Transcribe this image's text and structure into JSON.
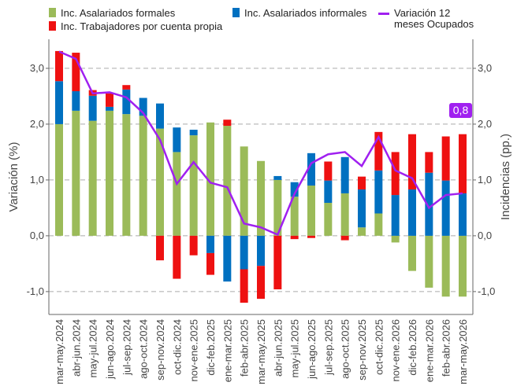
{
  "chart_data": {
    "type": "bar-line",
    "ylabel": "Variación (%)",
    "y2label": "Incidencias (pp.)",
    "categories": [
      "mar-may.2024",
      "abr-jun.2024",
      "may-jul.2024",
      "jun-ago.2024",
      "jul-sep.2024",
      "ago-oct.2024",
      "sep-nov.2024",
      "oct-dic.2024",
      "nov-ene.2025",
      "dic-feb.2025",
      "ene-mar.2025",
      "feb-abr.2025",
      "mar-may.2025",
      "abr-jun.2025",
      "may-jul.2025",
      "jun-ago.2025",
      "jul-sep.2025",
      "ago-oct.2025",
      "sep-nov.2025",
      "oct-dic.2025",
      "nov-ene.2026",
      "dic-feb.2026",
      "ene-mar.2026",
      "feb-abr.2026",
      "mar-may.2026"
    ],
    "series": [
      {
        "name": "Inc. Asalariados formales",
        "color": "#9bbb59",
        "kind": "bar",
        "axis": "y2",
        "values": [
          2.0,
          2.24,
          2.06,
          2.24,
          2.18,
          2.15,
          1.92,
          1.5,
          1.8,
          2.03,
          1.97,
          1.6,
          1.34,
          1.0,
          0.7,
          0.9,
          0.59,
          0.76,
          0.15,
          0.4,
          -0.12,
          -0.63,
          -0.93,
          -1.09,
          -1.09
        ]
      },
      {
        "name": "Inc. Asalariados informales",
        "color": "#0070c0",
        "kind": "bar",
        "axis": "y2",
        "values": [
          0.77,
          0.35,
          0.45,
          0.07,
          0.44,
          0.32,
          0.45,
          0.44,
          0.1,
          -0.31,
          -0.82,
          -0.6,
          -0.54,
          0.07,
          0.26,
          0.58,
          0.4,
          0.65,
          0.68,
          0.77,
          0.73,
          0.83,
          1.13,
          0.99,
          0.76
        ]
      },
      {
        "name": "Inc. Trabajadores por cuenta propia",
        "color": "#ee1111",
        "kind": "bar",
        "axis": "y2",
        "values": [
          0.54,
          0.69,
          0.1,
          0.24,
          0.08,
          0,
          -0.44,
          -0.77,
          -0.35,
          -0.39,
          0.11,
          -0.6,
          -0.59,
          -0.96,
          -0.06,
          -0.04,
          0.34,
          -0.08,
          0.23,
          0.69,
          0.77,
          0.99,
          0.37,
          0.79,
          1.06
        ]
      },
      {
        "name": "Variación 12 meses Ocupados",
        "color": "#a020f0",
        "kind": "line",
        "values": [
          3.3,
          3.17,
          2.55,
          2.57,
          2.48,
          2.2,
          1.72,
          0.93,
          1.32,
          0.95,
          0.87,
          0.22,
          0.15,
          0.02,
          0.75,
          1.3,
          1.46,
          1.5,
          1.25,
          1.77,
          1.17,
          1.03,
          0.5,
          0.73,
          0.76
        ]
      }
    ],
    "ylim": [
      -1.41,
      3.52
    ],
    "yticks": [
      {
        "value": -1,
        "label": "-1,0"
      },
      {
        "value": 0,
        "label": "0,0"
      },
      {
        "value": 1,
        "label": "1,0"
      },
      {
        "value": 2,
        "label": "2,0"
      },
      {
        "value": 3,
        "label": "3,0"
      }
    ],
    "y2lim": [
      -1.41,
      3.52
    ],
    "y2ticks": [
      {
        "value": -1,
        "label": "-1,0"
      },
      {
        "value": 0,
        "label": "0,0"
      },
      {
        "value": 1,
        "label": "1,0"
      },
      {
        "value": 2,
        "label": "2,0"
      },
      {
        "value": 3,
        "label": "3,0"
      }
    ],
    "grid": true,
    "annotation": {
      "text": "0,8",
      "color": "#a020f0"
    }
  }
}
